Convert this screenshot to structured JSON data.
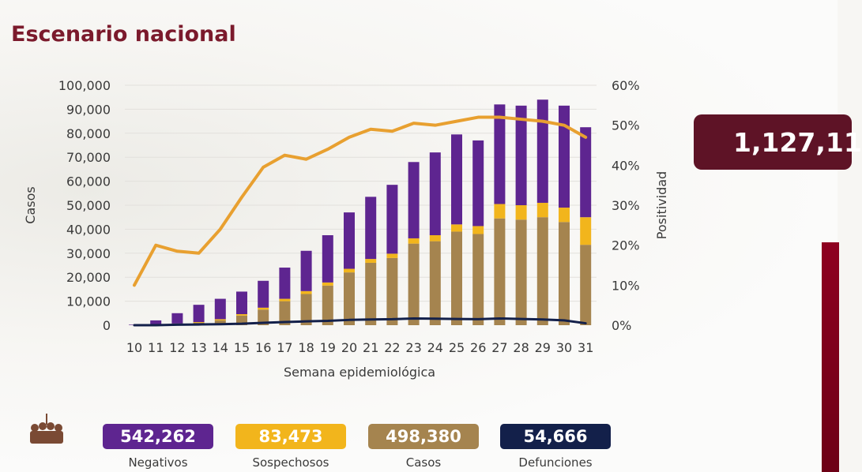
{
  "title": "Escenario nacional",
  "chart_data": {
    "type": "bar",
    "stacked": true,
    "xlabel": "Semana epidemiológica",
    "ylabel": "Casos",
    "y2label": "Positividad",
    "ylim": [
      0,
      100000
    ],
    "y2lim": [
      0,
      60
    ],
    "yticks": [
      "0",
      "10,000",
      "20,000",
      "30,000",
      "40,000",
      "50,000",
      "60,000",
      "70,000",
      "80,000",
      "90,000",
      "100,000"
    ],
    "y2ticks": [
      "0%",
      "10%",
      "20%",
      "30%",
      "40%",
      "50%",
      "60%"
    ],
    "categories": [
      "10",
      "11",
      "12",
      "13",
      "14",
      "15",
      "16",
      "17",
      "18",
      "19",
      "20",
      "21",
      "22",
      "23",
      "24",
      "25",
      "26",
      "27",
      "28",
      "29",
      "30",
      "31"
    ],
    "series": [
      {
        "name": "Casos",
        "kind": "bar",
        "color": "#a5844f",
        "values": [
          0,
          300,
          500,
          1000,
          2000,
          4000,
          6500,
          10000,
          13000,
          16500,
          22000,
          26000,
          28000,
          34000,
          35000,
          39000,
          38000,
          44500,
          44000,
          45000,
          43000,
          33500
        ]
      },
      {
        "name": "Sospechosos",
        "kind": "bar",
        "color": "#f2b51c",
        "values": [
          0,
          100,
          200,
          300,
          500,
          600,
          800,
          1000,
          1200,
          1300,
          1500,
          1600,
          1800,
          2200,
          2500,
          3000,
          3300,
          6000,
          6000,
          6000,
          6000,
          11500
        ]
      },
      {
        "name": "Negativos",
        "kind": "bar",
        "color": "#5e2590",
        "values": [
          200,
          1600,
          4300,
          7200,
          8500,
          9400,
          11200,
          13000,
          16800,
          19700,
          23500,
          25900,
          28700,
          31800,
          34500,
          37500,
          35700,
          41500,
          41500,
          43000,
          42500,
          37500
        ]
      },
      {
        "name": "Defunciones",
        "kind": "line",
        "color": "#13204a",
        "values": [
          0,
          0,
          200,
          300,
          400,
          600,
          1000,
          1300,
          1600,
          1800,
          2200,
          2400,
          2500,
          2800,
          2700,
          2600,
          2500,
          2800,
          2600,
          2400,
          2000,
          800
        ]
      },
      {
        "name": "Positividad",
        "kind": "line",
        "axis": "right",
        "color": "#e8a030",
        "values": [
          10,
          20,
          18.5,
          18,
          24,
          32,
          39.5,
          42.5,
          41.5,
          44,
          47,
          49,
          48.5,
          50.5,
          50,
          51,
          52,
          52,
          51.5,
          51,
          50,
          47
        ]
      }
    ]
  },
  "legend": [
    {
      "value": "542,262",
      "label": "Negativos",
      "color": "#5e2590"
    },
    {
      "value": "83,473",
      "label": "Sospechosos",
      "color": "#f2b51c"
    },
    {
      "value": "498,380",
      "label": "Casos",
      "color": "#a5844f"
    },
    {
      "value": "54,666",
      "label": "Defunciones",
      "color": "#13204a"
    }
  ],
  "total": "1,127,11"
}
